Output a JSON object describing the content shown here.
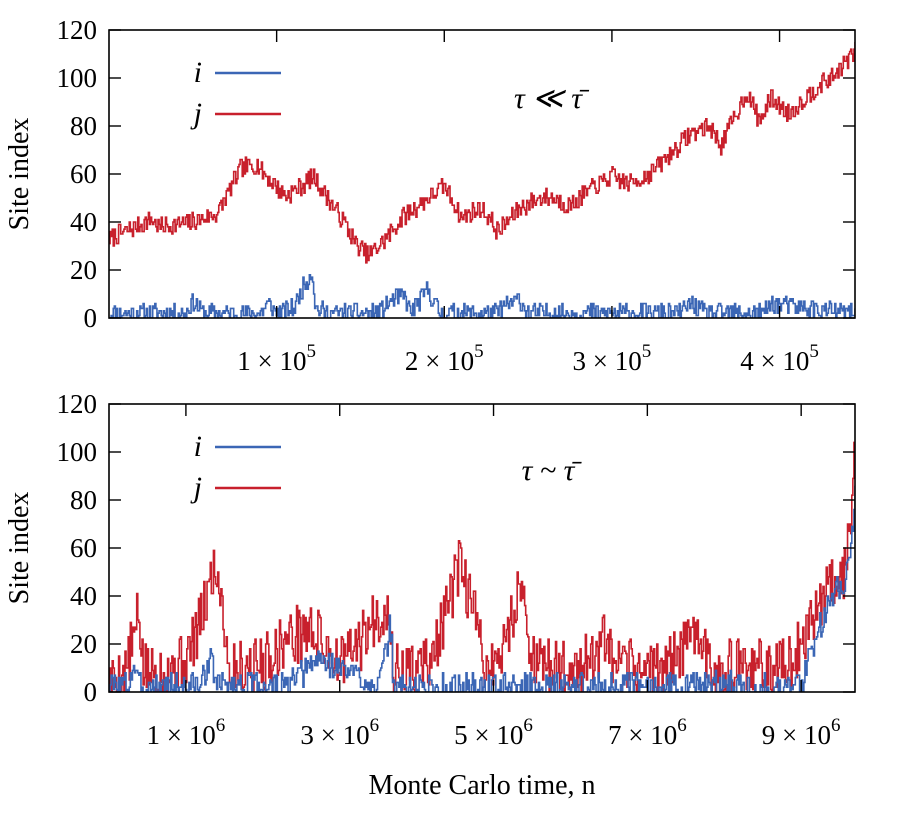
{
  "figure": {
    "xlabel": "Monte Carlo time, n",
    "colors": {
      "i": "#3b66b5",
      "j": "#c8202c",
      "axis": "#000000"
    }
  },
  "chart_data": [
    {
      "type": "line",
      "annotation": "τ ≪ τ̄",
      "ylabel": "Site index",
      "xlim": [
        0,
        445000
      ],
      "ylim": [
        0,
        120
      ],
      "yticks": [
        0,
        20,
        40,
        60,
        80,
        100,
        120
      ],
      "xticks": [
        {
          "value": 100000,
          "mantissa": "1",
          "exponent": "5"
        },
        {
          "value": 200000,
          "mantissa": "2",
          "exponent": "5"
        },
        {
          "value": 300000,
          "mantissa": "3",
          "exponent": "5"
        },
        {
          "value": 400000,
          "mantissa": "4",
          "exponent": "5"
        }
      ],
      "legend": {
        "position": "top-left"
      },
      "series": [
        {
          "name": "i",
          "color": "#3b66b5",
          "noise": 4,
          "seed": 11,
          "x": [
            0,
            45000,
            50000,
            56000,
            90000,
            95000,
            100000,
            110000,
            115000,
            121000,
            123000,
            130000,
            160000,
            170000,
            176000,
            180000,
            185000,
            190000,
            197000,
            230000,
            244000,
            250000,
            280000,
            300000,
            340000,
            347000,
            355000,
            390000,
            395000,
            440000,
            445000
          ],
          "y": [
            2,
            2,
            7,
            2,
            2,
            6,
            2,
            4,
            12,
            20,
            4,
            2,
            2,
            8,
            9,
            2,
            7,
            12,
            2,
            2,
            8,
            2,
            2,
            2,
            2,
            6,
            2,
            2,
            6,
            2,
            2
          ]
        },
        {
          "name": "j",
          "color": "#c8202c",
          "noise": 4,
          "seed": 7,
          "x": [
            0,
            10000,
            25000,
            30000,
            50000,
            65000,
            78000,
            88000,
            95000,
            105000,
            115000,
            122000,
            130000,
            140000,
            148000,
            155000,
            165000,
            175000,
            190000,
            200000,
            210000,
            222000,
            232000,
            245000,
            260000,
            275000,
            290000,
            300000,
            310000,
            320000,
            330000,
            345000,
            358000,
            365000,
            380000,
            388000,
            395000,
            405000,
            420000,
            432000,
            445000
          ],
          "y": [
            33,
            36,
            41,
            38,
            40,
            44,
            62,
            64,
            58,
            51,
            55,
            59,
            50,
            40,
            30,
            26,
            33,
            42,
            50,
            55,
            42,
            46,
            36,
            46,
            51,
            47,
            55,
            59,
            56,
            59,
            65,
            76,
            80,
            72,
            94,
            82,
            92,
            85,
            95,
            101,
            111
          ]
        }
      ]
    },
    {
      "type": "line",
      "annotation": "τ ~ τ̄",
      "ylabel": "Site index",
      "xlim": [
        0,
        9700000
      ],
      "ylim": [
        0,
        120
      ],
      "yticks": [
        0,
        20,
        40,
        60,
        80,
        100,
        120
      ],
      "xticks": [
        {
          "value": 1000000,
          "mantissa": "1",
          "exponent": "6"
        },
        {
          "value": 3000000,
          "mantissa": "3",
          "exponent": "6"
        },
        {
          "value": 5000000,
          "mantissa": "5",
          "exponent": "6"
        },
        {
          "value": 7000000,
          "mantissa": "7",
          "exponent": "6"
        },
        {
          "value": 9000000,
          "mantissa": "9",
          "exponent": "6"
        }
      ],
      "legend": {
        "position": "top-left"
      },
      "series": [
        {
          "name": "j",
          "color": "#c8202c",
          "noise": 12,
          "seed": 5,
          "x": [
            0,
            200000,
            300000,
            380000,
            450000,
            800000,
            1000000,
            1200000,
            1350000,
            1450000,
            1550000,
            2000000,
            2300000,
            2600000,
            2800000,
            3000000,
            3250000,
            3450000,
            3600000,
            3700000,
            4000000,
            4200000,
            4400000,
            4550000,
            4700000,
            4900000,
            5100000,
            5350000,
            5450000,
            5550000,
            6000000,
            6300000,
            6450000,
            6550000,
            7200000,
            7550000,
            7650000,
            7800000,
            8500000,
            8900000,
            9000000,
            9200000,
            9400000,
            9550000,
            9650000,
            9700000
          ],
          "y": [
            4,
            8,
            20,
            32,
            8,
            10,
            14,
            30,
            52,
            44,
            10,
            12,
            22,
            26,
            20,
            12,
            20,
            30,
            36,
            8,
            10,
            14,
            35,
            52,
            38,
            10,
            15,
            46,
            24,
            10,
            10,
            14,
            22,
            10,
            10,
            20,
            30,
            10,
            10,
            12,
            22,
            36,
            48,
            50,
            72,
            105
          ]
        },
        {
          "name": "i",
          "color": "#3b66b5",
          "noise": 6,
          "seed": 3,
          "x": [
            0,
            250000,
            320000,
            380000,
            600000,
            1200000,
            1300000,
            1400000,
            2300000,
            2600000,
            2700000,
            3500000,
            3600000,
            3650000,
            3700000,
            6500000,
            7650000,
            9000000,
            9100000,
            9200000,
            9400000,
            9550000,
            9650000,
            9700000
          ],
          "y": [
            2,
            3,
            12,
            2,
            2,
            3,
            15,
            3,
            2,
            10,
            14,
            3,
            15,
            30,
            2,
            2,
            3,
            2,
            16,
            24,
            40,
            46,
            60,
            90
          ]
        }
      ]
    }
  ]
}
